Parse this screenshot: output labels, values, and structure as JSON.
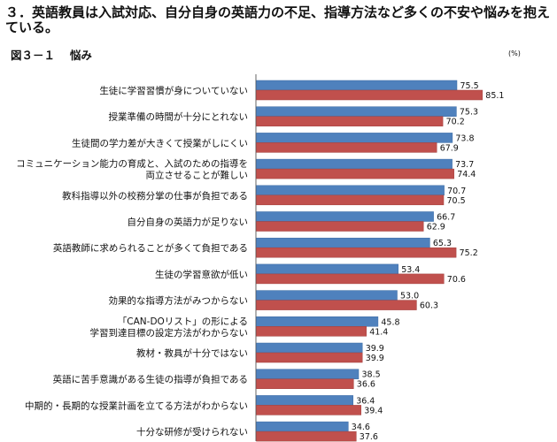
{
  "heading": "３．英語教員は入試対応、自分自身の英語力の不足、指導方法など多くの不安や悩みを抱えている。",
  "figure_title": "図３－１　 悩み",
  "unit": "(%)",
  "colors": {
    "series_a": "#4f81bd",
    "series_b": "#c0504d",
    "axis": "#666666"
  },
  "chart_data": {
    "type": "bar",
    "orientation": "horizontal",
    "categories": [
      [
        "生徒に学習習慣が身についていない"
      ],
      [
        "授業準備の時間が十分にとれない"
      ],
      [
        "生徒間の学力差が大きくて授業がしにくい"
      ],
      [
        "コミュニケーション能力の育成と、入試のための指導を",
        "両立させることが難しい"
      ],
      [
        "教科指導以外の校務分掌の仕事が負担である"
      ],
      [
        "自分自身の英語力が足りない"
      ],
      [
        "英語教師に求められることが多くて負担である"
      ],
      [
        "生徒の学習意欲が低い"
      ],
      [
        "効果的な指導方法がみつからない"
      ],
      [
        "「CAN-DOリスト」の形による",
        "学習到達目標の設定方法がわからない"
      ],
      [
        "教材・教具が十分ではない"
      ],
      [
        "英語に苦手意識がある生徒の指導が負担である"
      ],
      [
        "中期的・長期的な授業計画を立てる方法がわからない"
      ],
      [
        "十分な研修が受けられない"
      ]
    ],
    "series": [
      {
        "values": [
          75.5,
          75.3,
          73.8,
          73.7,
          70.7,
          66.7,
          65.3,
          53.4,
          53.0,
          45.8,
          39.9,
          38.5,
          36.4,
          34.6
        ],
        "labels": [
          "75.5",
          "75.3",
          "73.8",
          "73.7",
          "70.7",
          "66.7",
          "65.3",
          "53.4",
          "53.0",
          "45.8",
          "39.9",
          "38.5",
          "36.4",
          "34.6"
        ]
      },
      {
        "values": [
          85.1,
          70.2,
          67.9,
          74.4,
          70.5,
          62.9,
          75.2,
          70.6,
          60.3,
          41.4,
          39.9,
          36.6,
          39.4,
          37.6
        ],
        "labels": [
          "85.1",
          "70.2",
          "67.9",
          "74.4",
          "70.5",
          "62.9",
          "75.2",
          "70.6",
          "60.3",
          "41.4",
          "39.9",
          "36.6",
          "39.4",
          "37.6"
        ]
      }
    ],
    "xlim": [
      0,
      100
    ],
    "grid": false,
    "legend": "none"
  }
}
